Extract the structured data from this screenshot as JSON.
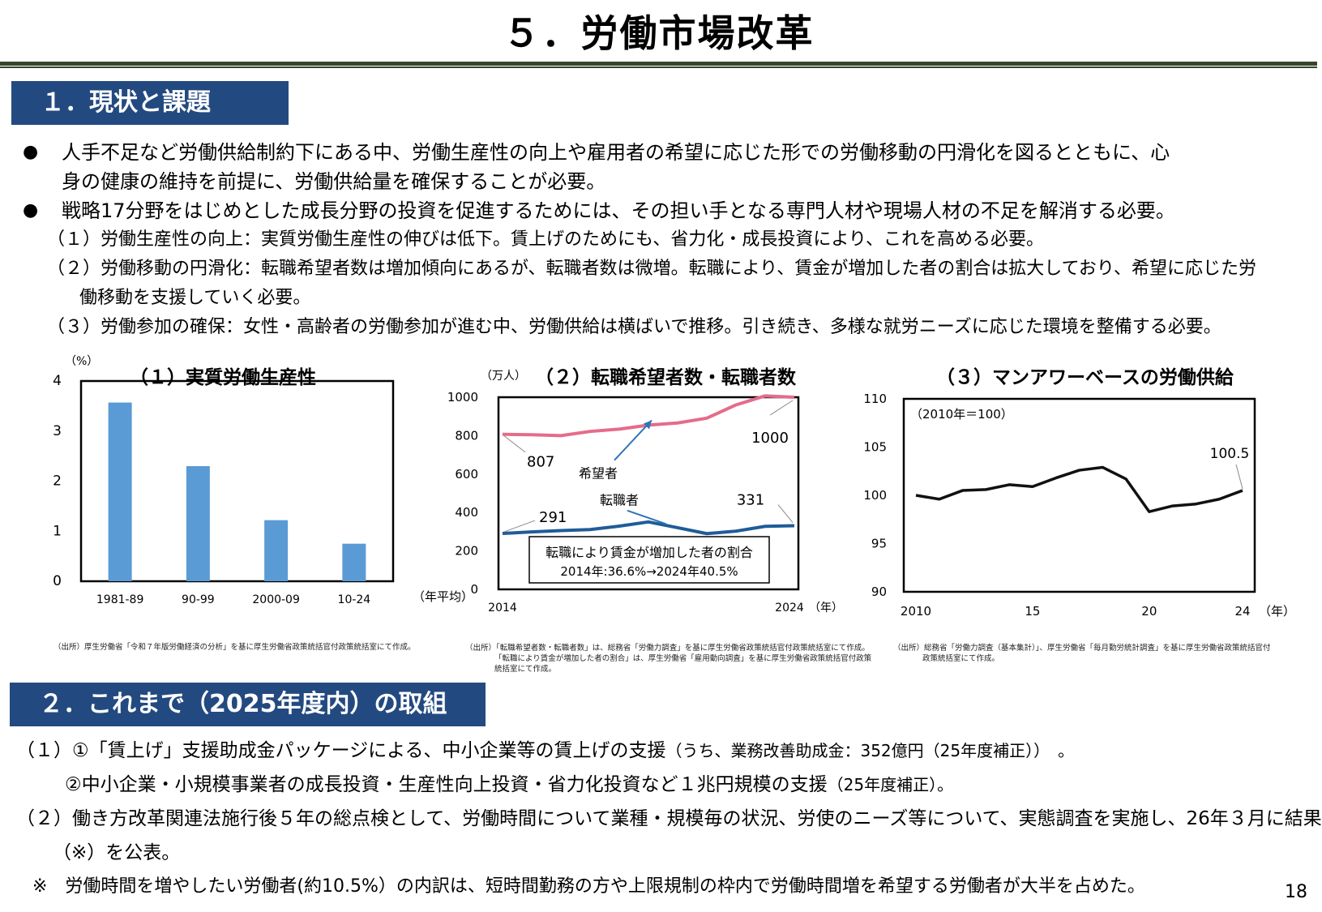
{
  "page": {
    "title": "５．労働市場改革",
    "number": "18"
  },
  "section1": {
    "heading": "１．現状と課題",
    "bullets": [
      {
        "line1": "人手不足など労働供給制約下にある中、労働生産性の向上や雇用者の希望に応じた形での労働移動の円滑化を図るとともに、心",
        "line2": "身の健康の維持を前提に、労働供給量を確保することが必要。"
      },
      {
        "line1": "戦略17分野をはじめとした成長分野の投資を促進するためには、その担い手となる専門人材や現場人材の不足を解消する必要。"
      }
    ],
    "subs": [
      {
        "line1": "（１）労働生産性の向上：実質労働生産性の伸びは低下。賃上げのためにも、省力化・成長投資により、これを高める必要。"
      },
      {
        "line1": "（２）労働移動の円滑化：転職希望者数は増加傾向にあるが、転職者数は微増。転職により、賃金が増加した者の割合は拡大しており、希望に応じた労",
        "line2": "働移動を支援していく必要。"
      },
      {
        "line1": "（３）労働参加の確保：女性・高齢者の労働参加が進む中、労働供給は横ばいで推移。引き続き、多様な就労ニーズに応じた環境を整備する必要。"
      }
    ]
  },
  "chart_data": [
    {
      "type": "bar",
      "title": "（１）実質労働生産性",
      "ylabel": "（%）",
      "xlabel": "（年平均）",
      "categories": [
        "1981-89",
        "90-99",
        "2000-09",
        "10-24"
      ],
      "values": [
        3.57,
        2.3,
        1.22,
        0.75
      ],
      "ylim": [
        0,
        4
      ],
      "yticks": [
        "0",
        "1",
        "2",
        "3",
        "4"
      ],
      "color": "#5b9bd5",
      "source": "（出所）厚生労働省「令和７年版労働経済の分析」を基に厚生労働省政策統括官付政策統括室にて作成。"
    },
    {
      "type": "line",
      "title": "（２）転職希望者数・転職者数",
      "ylabel": "（万人）",
      "xlabel": "（年）",
      "x": [
        2014,
        2015,
        2016,
        2017,
        2018,
        2019,
        2020,
        2021,
        2022,
        2023,
        2024
      ],
      "ylim": [
        0,
        1000
      ],
      "yticks": [
        "0",
        "200",
        "400",
        "600",
        "800",
        "1000"
      ],
      "xticks": [
        "2014",
        "2024"
      ],
      "series": [
        {
          "name": "希望者",
          "color": "#e46c8a",
          "values": [
            807,
            805,
            800,
            822,
            834,
            855,
            866,
            891,
            960,
            1007,
            1000
          ],
          "first_label": "807",
          "last_label": "1000"
        },
        {
          "name": "転職者",
          "color": "#1f5c99",
          "values": [
            291,
            299,
            306,
            311,
            329,
            351,
            321,
            290,
            303,
            328,
            331
          ],
          "first_label": "291",
          "last_label": "331"
        }
      ],
      "note_title": "転職により賃金が増加した者の割合",
      "note_body": "2014年:36.6%→2024年40.5%",
      "source_lines": [
        "（出所）「転職希望者数・転職者数」は、総務省「労働力調査」を基に厚生労働省政策統括官付政策統括室にて作成。",
        "「転職により賃金が増加した者の割合」は、厚生労働省「雇用動向調査」を基に厚生労働省政策統括官付政策",
        "統括室にて作成。"
      ]
    },
    {
      "type": "line",
      "title": "（３）マンアワーベースの労働供給",
      "annotation": "（2010年＝100）",
      "xlabel": "（年）",
      "x": [
        2010,
        2011,
        2012,
        2013,
        2014,
        2015,
        2016,
        2017,
        2018,
        2019,
        2020,
        2021,
        2022,
        2023,
        2024
      ],
      "ylim": [
        90,
        110
      ],
      "yticks": [
        "90",
        "95",
        "100",
        "105",
        "110"
      ],
      "xticks": [
        "2010",
        "15",
        "20",
        "24"
      ],
      "series": [
        {
          "color": "#111111",
          "values": [
            100.0,
            99.6,
            100.5,
            100.6,
            101.1,
            100.9,
            101.8,
            102.6,
            102.9,
            101.7,
            98.3,
            98.9,
            99.1,
            99.6,
            100.5
          ],
          "last_label": "100.5"
        }
      ],
      "source_lines": [
        "（出所）総務省「労働力調査（基本集計）」、厚生労働省「毎月勤労統計調査」を基に厚生労働省政策統括官付",
        "政策統括室にて作成。"
      ]
    }
  ],
  "section2": {
    "heading": "２．これまで（2025年度内）の取組",
    "items": [
      {
        "prefix": "（１）①「賃上げ」支援助成金パッケージによる、中小企業等の賃上げの支援",
        "note": "（うち、業務改善助成金：352億円（25年度補正））　。"
      },
      {
        "prefix": "②中小企業・小規模事業者の成長投資・生産性向上投資・省力化投資など１兆円規模の支援",
        "note": "（25年度補正）。"
      },
      {
        "prefix": "（２）働き方改革関連法施行後５年の総点検として、労働時間について業種・規模毎の状況、労使のニーズ等について、実態調査を実施し、26年３月に結果"
      },
      {
        "prefix": "（※）を公表。"
      },
      {
        "prefix": "※　労働時間を増やしたい労働者(約10.5%）の内訳は、短時間勤務の方や上限規制の枠内で労働時間増を希望する労働者が大半を占めた。"
      }
    ]
  }
}
